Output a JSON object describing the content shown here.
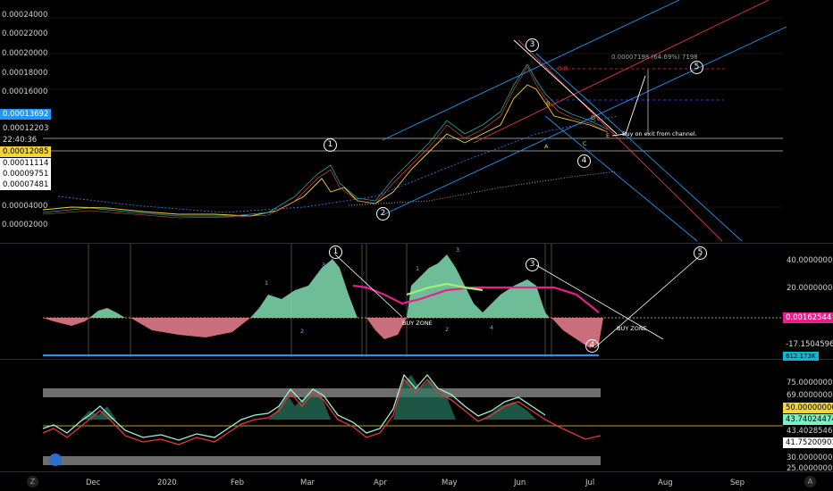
{
  "price_pane": {
    "y_ticks": [
      "0.00024000",
      "0.00022000",
      "0.00020000",
      "0.00018000",
      "0.00016000",
      "0.00004000",
      "0.00002000"
    ],
    "last_price": "0.00013692",
    "price_b": "0.00012203",
    "countdown": "22:40:36",
    "price_c": "0.00012085",
    "price_d": "0.00011114",
    "price_e": "0.00009751",
    "price_f": "0.00007481",
    "fib_label": "0.8",
    "range_label": "0.00007198 (64.69%) 7198",
    "note": "Buy on exit from channel.",
    "wave_labels": [
      "1",
      "2",
      "3",
      "4",
      "5"
    ],
    "letters": [
      "A",
      "B",
      "C",
      "D",
      "E"
    ]
  },
  "osc_pane": {
    "right_ticks": [
      "40.00000000",
      "20.00000000"
    ],
    "value_a": "0.00162544",
    "value_b": "-17.15045963",
    "value_c": "612.173K",
    "buy_zone": "BUY ZONE",
    "wave_counts": [
      "1",
      "2",
      "3",
      "1",
      "2",
      "3",
      "4"
    ]
  },
  "rsi_pane": {
    "right_ticks": [
      "75.00000000",
      "69.00000000",
      "50.00000000",
      "43.74024474",
      "43.40285469",
      "41.75200901",
      "30.00000000",
      "25.00000000"
    ]
  },
  "x_axis": {
    "labels": [
      "Dec",
      "2020",
      "Feb",
      "Mar",
      "Apr",
      "May",
      "Jun",
      "Jul",
      "Aug",
      "Sep"
    ]
  },
  "corner_left": "Z",
  "corner_right": "A",
  "colors": {
    "accent_blue": "#1e88e5",
    "yellow": "#f2d43b",
    "pink": "#e91e8c",
    "cyan": "#00bcd4",
    "red": "#f23645",
    "teal": "#26a69a"
  }
}
